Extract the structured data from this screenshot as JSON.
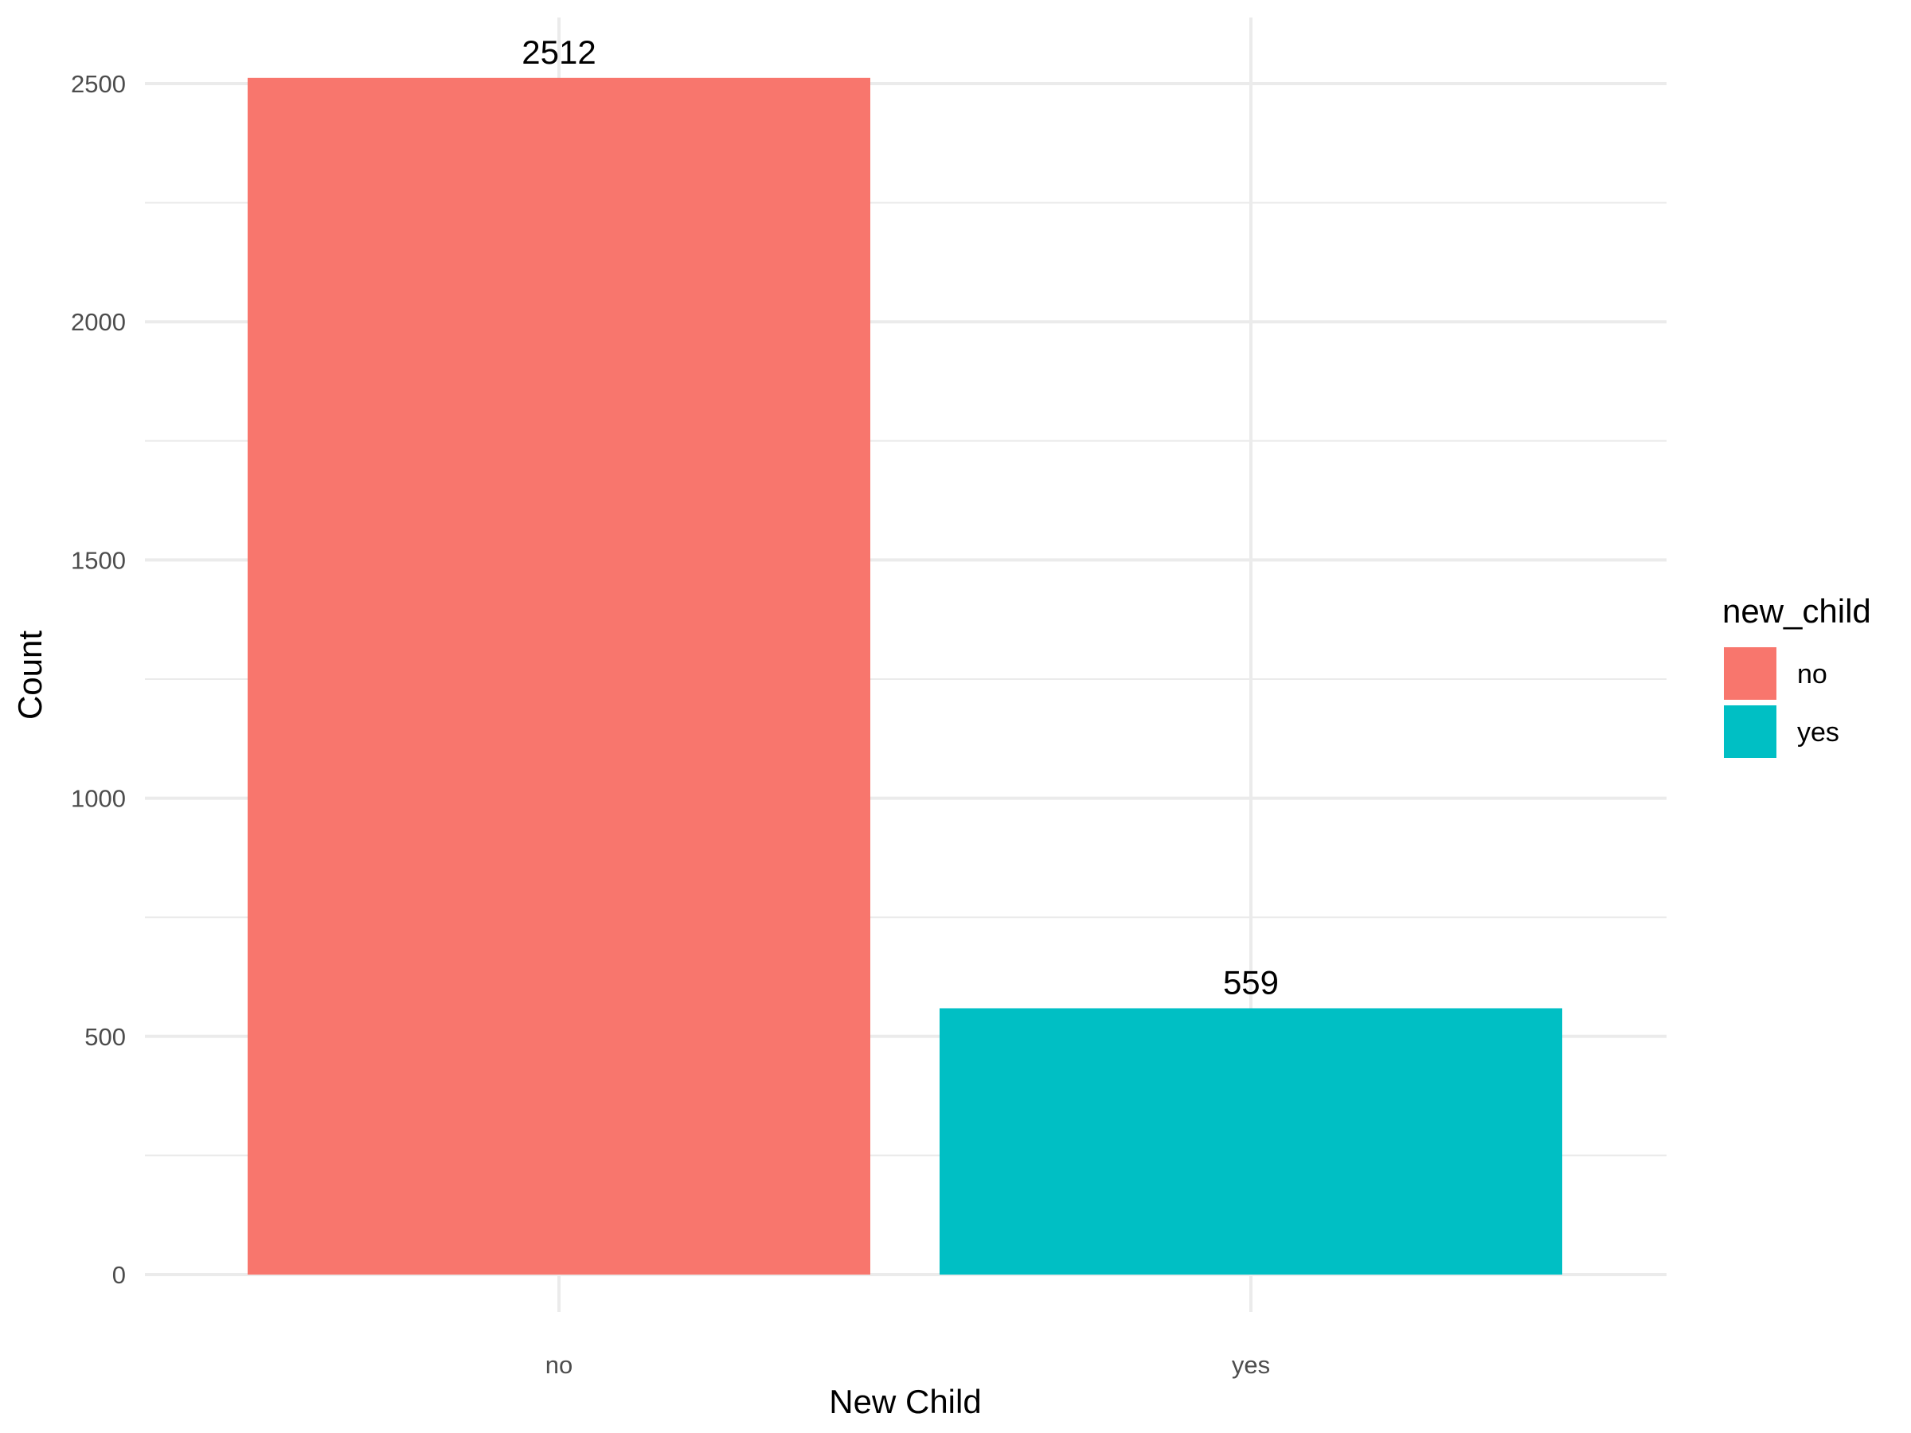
{
  "chart_data": {
    "type": "bar",
    "categories": [
      "no",
      "yes"
    ],
    "values": [
      2512,
      559
    ],
    "data_labels": [
      "2512",
      "559"
    ],
    "colors": {
      "no": "#F8766D",
      "yes": "#00BFC4"
    },
    "title": "",
    "xlabel": "New Child",
    "ylabel": "Count",
    "ylim": [
      0,
      2640
    ],
    "y_ticks": [
      0,
      500,
      1000,
      1500,
      2000,
      2500
    ],
    "y_tick_labels": [
      "0",
      "500",
      "1000",
      "1500",
      "2000",
      "2500"
    ],
    "grid": true,
    "legend": {
      "title": "new_child",
      "placement": "right",
      "items": [
        {
          "label": "no",
          "color": "#F8766D"
        },
        {
          "label": "yes",
          "color": "#00BFC4"
        }
      ]
    }
  }
}
